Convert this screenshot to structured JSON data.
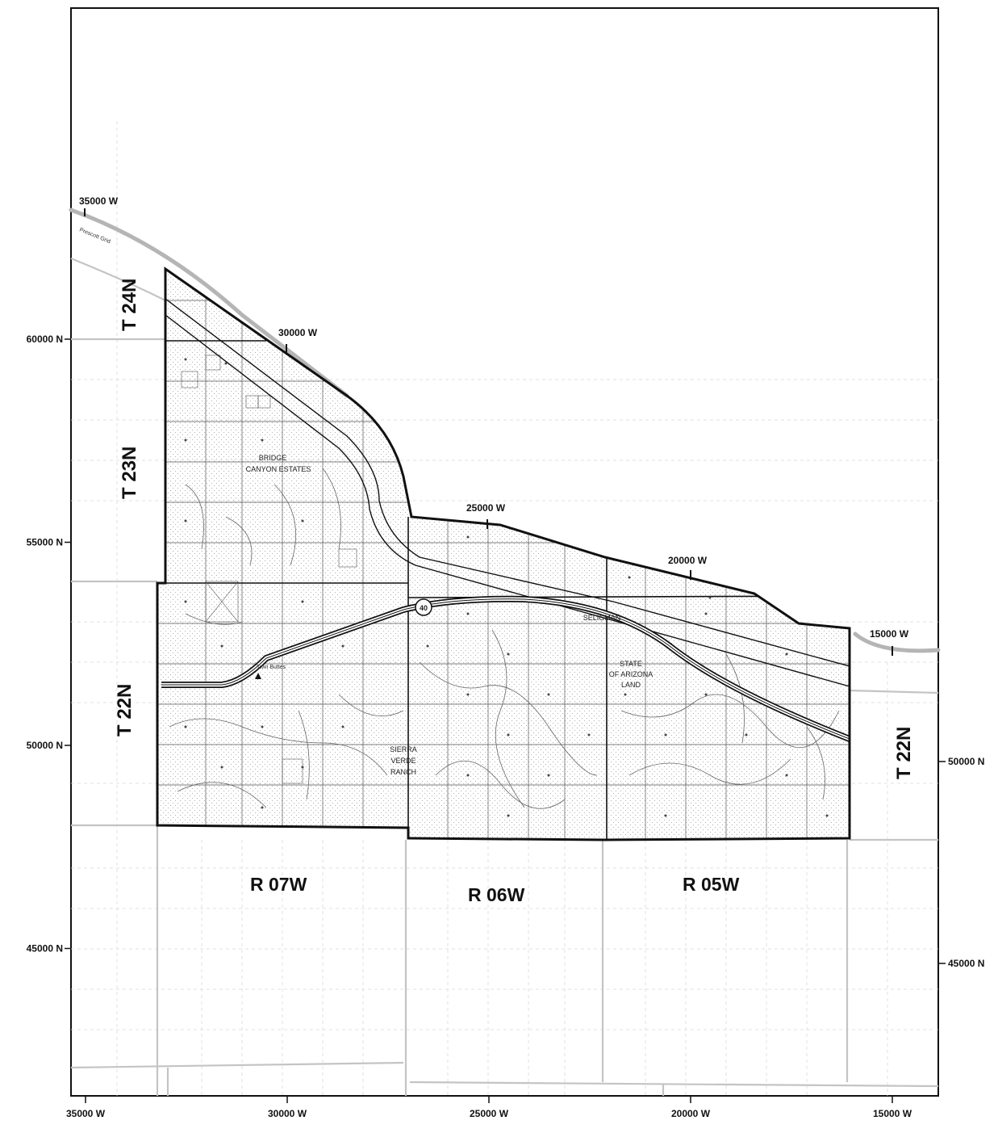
{
  "x_axis": {
    "ticks": [
      {
        "value": 35000,
        "label": "35000 W"
      },
      {
        "value": 30000,
        "label": "30000 W"
      },
      {
        "value": 25000,
        "label": "25000 W"
      },
      {
        "value": 20000,
        "label": "20000 W"
      },
      {
        "value": 15000,
        "label": "15000 W"
      }
    ]
  },
  "y_axis_left": {
    "ticks": [
      {
        "value": 60000,
        "label": "60000 N"
      },
      {
        "value": 55000,
        "label": "55000 N"
      },
      {
        "value": 50000,
        "label": "50000 N"
      },
      {
        "value": 45000,
        "label": "45000 N"
      }
    ]
  },
  "y_axis_right": {
    "ticks": [
      {
        "value": 50000,
        "label": "50000 N"
      },
      {
        "value": 45000,
        "label": "45000 N"
      }
    ]
  },
  "grid_labels": {
    "g35000": "35000 W",
    "g30000": "30000 W",
    "g25000": "25000 W",
    "g20000": "20000 W",
    "g15000": "15000 W",
    "prescott": "Prescott Grid"
  },
  "townships": {
    "t24n": "T 24N",
    "t23n": "T 23N",
    "t22n_left": "T 22N",
    "t22n_right": "T 22N"
  },
  "ranges": {
    "r07w": "R 07W",
    "r06w": "R 06W",
    "r05w": "R 05W"
  },
  "places": {
    "bridge_line1": "BRIDGE",
    "bridge_line2": "CANYON ESTATES",
    "seligman": "SELIGMAN",
    "state_line1": "STATE",
    "state_line2": "OF ARIZONA",
    "state_line3": "LAND",
    "sierra_line1": "SIERRA",
    "sierra_line2": "VERDE",
    "sierra_line3": "RANCH",
    "interstate_shield": "40",
    "twin_buttes": "Twin Buttes"
  },
  "colors": {
    "boundary": "#111111",
    "grid_gray": "#bdbdbd",
    "dashed_grid": "#d6d6d6",
    "stipple": "#9a9a9a"
  }
}
